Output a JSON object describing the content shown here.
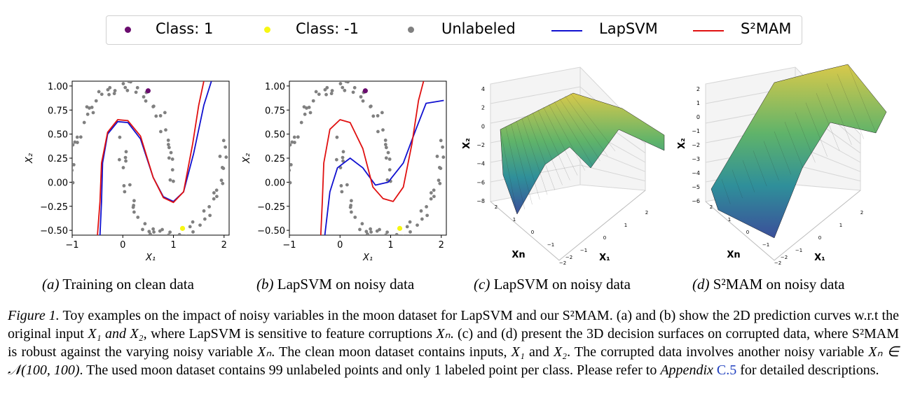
{
  "legend": {
    "items": [
      {
        "label": "Class: 1",
        "kind": "dot",
        "color": "#6a0c6e"
      },
      {
        "label": "Class: -1",
        "kind": "dot",
        "color": "#f7f713"
      },
      {
        "label": "Unlabeled",
        "kind": "dot",
        "color": "#808080"
      },
      {
        "label": "LapSVM",
        "kind": "line",
        "color": "#1010d0"
      },
      {
        "label": "S²MAM",
        "kind": "line",
        "color": "#e01010"
      }
    ]
  },
  "chart_data": [
    {
      "type": "scatter",
      "panel": "a",
      "xlabel": "X₁",
      "ylabel": "X₂",
      "xlim": [
        -1,
        2.1
      ],
      "ylim": [
        -0.55,
        1.05
      ],
      "xticks": [
        "−1",
        "0",
        "1",
        "2"
      ],
      "yticks": [
        "1.00",
        "0.75",
        "0.50",
        "0.25",
        "0.00",
        "−0.25",
        "−0.50"
      ],
      "labeled": [
        {
          "class": "1",
          "x": 0.5,
          "y": 0.95
        },
        {
          "class": "-1",
          "x": 1.18,
          "y": -0.48
        }
      ],
      "series": [
        {
          "name": "LapSVM",
          "points": [
            [
              -0.45,
              -0.55
            ],
            [
              -0.42,
              -0.2
            ],
            [
              -0.4,
              0.2
            ],
            [
              -0.3,
              0.5
            ],
            [
              -0.1,
              0.63
            ],
            [
              0.1,
              0.62
            ],
            [
              0.35,
              0.45
            ],
            [
              0.6,
              0.05
            ],
            [
              0.8,
              -0.15
            ],
            [
              1.0,
              -0.2
            ],
            [
              1.2,
              -0.1
            ],
            [
              1.4,
              0.3
            ],
            [
              1.6,
              0.8
            ],
            [
              1.75,
              1.05
            ]
          ]
        },
        {
          "name": "S²MAM",
          "points": [
            [
              -0.5,
              -0.55
            ],
            [
              -0.45,
              -0.2
            ],
            [
              -0.42,
              0.2
            ],
            [
              -0.3,
              0.52
            ],
            [
              -0.1,
              0.65
            ],
            [
              0.1,
              0.64
            ],
            [
              0.35,
              0.48
            ],
            [
              0.6,
              0.05
            ],
            [
              0.8,
              -0.16
            ],
            [
              1.0,
              -0.21
            ],
            [
              1.2,
              -0.1
            ],
            [
              1.38,
              0.4
            ],
            [
              1.5,
              0.8
            ],
            [
              1.6,
              1.05
            ]
          ]
        }
      ]
    },
    {
      "type": "scatter",
      "panel": "b",
      "xlabel": "X₁",
      "ylabel": "X₂",
      "xlim": [
        -1,
        2.1
      ],
      "ylim": [
        -0.55,
        1.05
      ],
      "xticks": [
        "−1",
        "0",
        "1",
        "2"
      ],
      "yticks": [
        "1.00",
        "0.75",
        "0.50",
        "0.25",
        "0.00",
        "−0.25",
        "−0.50"
      ],
      "labeled": [
        {
          "class": "1",
          "x": 0.5,
          "y": 0.95
        },
        {
          "class": "-1",
          "x": 1.18,
          "y": -0.48
        }
      ],
      "series": [
        {
          "name": "LapSVM",
          "points": [
            [
              -0.3,
              -0.55
            ],
            [
              -0.2,
              -0.1
            ],
            [
              -0.05,
              0.15
            ],
            [
              0.2,
              0.25
            ],
            [
              0.45,
              0.15
            ],
            [
              0.7,
              -0.03
            ],
            [
              0.95,
              0.0
            ],
            [
              1.25,
              0.2
            ],
            [
              1.5,
              0.55
            ],
            [
              1.7,
              0.82
            ],
            [
              2.05,
              0.85
            ]
          ]
        },
        {
          "name": "S²MAM",
          "points": [
            [
              -0.38,
              -0.55
            ],
            [
              -0.35,
              -0.2
            ],
            [
              -0.32,
              0.2
            ],
            [
              -0.2,
              0.55
            ],
            [
              0.0,
              0.65
            ],
            [
              0.2,
              0.62
            ],
            [
              0.45,
              0.35
            ],
            [
              0.65,
              -0.05
            ],
            [
              0.85,
              -0.17
            ],
            [
              1.05,
              -0.2
            ],
            [
              1.25,
              -0.05
            ],
            [
              1.42,
              0.4
            ],
            [
              1.55,
              0.85
            ],
            [
              1.65,
              1.05
            ]
          ]
        }
      ]
    },
    {
      "type": "surface",
      "panel": "c",
      "xlabel": "X₁",
      "ylabel": "X₂",
      "zlabel": "Xn",
      "zticks": [
        "4",
        "2",
        "0",
        "−2",
        "−4",
        "−6",
        "−8"
      ],
      "xticks": [
        "−2",
        "−1",
        "0",
        "1",
        "2"
      ],
      "nticks": [
        "2",
        "1",
        "0",
        "−1",
        "−2"
      ]
    },
    {
      "type": "surface",
      "panel": "d",
      "xlabel": "X₁",
      "ylabel": "X₂",
      "zlabel": "Xn",
      "zticks": [
        "2",
        "1",
        "0",
        "−1",
        "−2",
        "−3",
        "−4",
        "−5",
        "−6"
      ],
      "xticks": [
        "−2",
        "−1",
        "0",
        "1",
        "2"
      ],
      "nticks": [
        "2",
        "1",
        "0",
        "−1",
        "−2"
      ]
    }
  ],
  "subcaptions": {
    "a": {
      "tag": "(a)",
      "text": " Training on clean data"
    },
    "b": {
      "tag": "(b)",
      "text": " LapSVM on noisy data"
    },
    "c": {
      "tag": "(c)",
      "text": " LapSVM on noisy data"
    },
    "d": {
      "tag": "(d)",
      "text": " S²MAM on noisy data"
    }
  },
  "caption": {
    "label": "Figure 1.",
    "p1": " Toy examples on the impact of noisy variables in the moon dataset for LapSVM and our S²MAM. (a) and (b) show the 2D prediction curves w.r.t the original input ",
    "p2": " where LapSVM is sensitive to feature corruptions ",
    "p3": ". (c) and (d) present the 3D decision surfaces on corrupted data, where S²MAM is robust against the varying noisy variable ",
    "p4": ". The clean moon dataset contains inputs, ",
    "p5": ". The corrupted data involves another noisy variable ",
    "p6": ". The used moon dataset contains 99 unlabeled points and only 1 labeled point per class. Please refer to ",
    "appendix": "Appendix ",
    "link": "C.5",
    "p7": " for detailed descriptions.",
    "x1x2": "X₁ and X₂,",
    "xn": "Xₙ",
    "x1": "X₁",
    "and": " and ",
    "x2": "X₂",
    "dist": "Xₙ ∈ 𝒩(100, 100)"
  }
}
